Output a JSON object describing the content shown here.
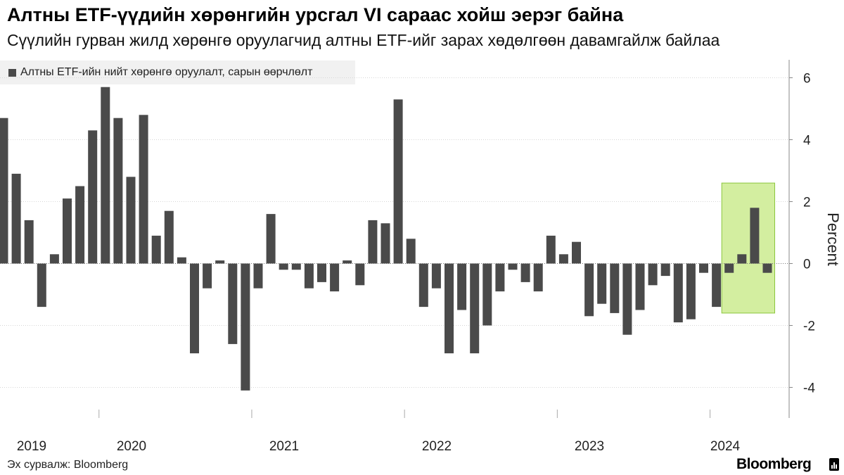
{
  "header": {
    "title": "Алтны ETF-үүдийн хөрөнгийн урсгал VI сараас хойш эерэг байна",
    "subtitle": "Сүүлийн гурван жилд хөрөнгө оруулагчид алтны ETF-ийг зарах хөдөлгөөн давамгайлж байлаа"
  },
  "legend": {
    "label": "Алтны ETF-ийн нийт хөрөнгө оруулалт, сарын өөрчлөлт"
  },
  "footer": {
    "source": "Эх сурвалж: Bloomberg",
    "brand": "Bloomberg"
  },
  "colors": {
    "bar": "#4a4a4a",
    "highlight_fill": "#d3eea0",
    "highlight_stroke": "#8cc63e",
    "grid": "#d6d6d6"
  },
  "chart_data": {
    "type": "bar",
    "title": "Алтны ETF-үүдийн хөрөнгийн урсгал VI сараас хойш эерэг байна",
    "subtitle": "Сүүлийн гурван жилд хөрөнгө оруулагчид алтны ETF-ийг зарах хөдөлгөөн давамгайлж байлаа",
    "ylabel": "Percent",
    "ylim": [
      -5,
      6.5
    ],
    "yticks": [
      6,
      4,
      2,
      0,
      -2,
      -4
    ],
    "ytick_labels": [
      "6",
      "4",
      "2",
      "0",
      "-2",
      "-4"
    ],
    "year_labels": [
      "2019",
      "2020",
      "2021",
      "2022",
      "2023",
      "2024"
    ],
    "grid": "horizontal",
    "legend_position": "top-left",
    "series": [
      {
        "name": "Алтны ETF-ийн нийт хөрөнгө оруулалт, сарын өөрчлөлт",
        "values": [
          4.7,
          2.9,
          1.4,
          -1.4,
          0.3,
          2.1,
          2.5,
          4.3,
          5.7,
          4.7,
          2.8,
          4.8,
          0.9,
          1.7,
          0.2,
          -2.9,
          -0.8,
          0.1,
          -2.6,
          -4.1,
          -0.8,
          1.6,
          -0.2,
          -0.2,
          -0.8,
          -0.6,
          -0.9,
          0.1,
          -0.7,
          1.4,
          1.3,
          5.3,
          0.8,
          -1.4,
          -0.8,
          -2.9,
          -1.5,
          -2.9,
          -2.0,
          -0.9,
          -0.2,
          -0.6,
          -0.9,
          0.9,
          0.3,
          0.7,
          -1.7,
          -1.3,
          -1.6,
          -2.3,
          -1.5,
          -0.7,
          -0.4,
          -1.9,
          -1.8,
          -0.3,
          -1.4,
          -0.3,
          0.3,
          1.8,
          -0.3
        ]
      }
    ],
    "highlight": {
      "from_index": 57,
      "to_index": 60,
      "y_range": [
        -1.6,
        2.6
      ]
    }
  }
}
